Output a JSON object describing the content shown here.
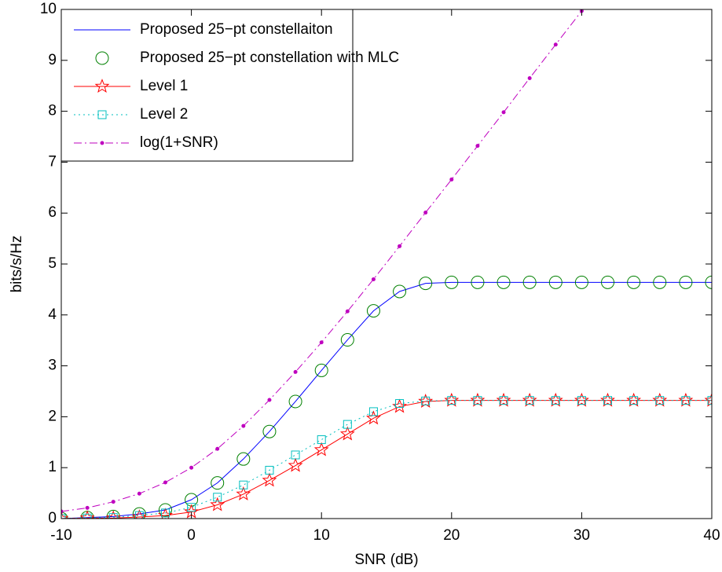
{
  "chart_data": {
    "type": "line",
    "xlabel": "SNR (dB)",
    "ylabel": "bits/s/Hz",
    "x": [
      -10,
      -8,
      -6,
      -4,
      -2,
      0,
      2,
      4,
      6,
      8,
      10,
      12,
      14,
      16,
      18,
      20,
      22,
      24,
      26,
      28,
      30,
      32,
      34,
      36,
      38,
      40
    ],
    "series": [
      {
        "name": "Proposed 25−pt constellaiton",
        "color": "#0000ff",
        "linestyle": "solid",
        "marker": "none",
        "values": [
          0.0,
          0.02,
          0.04,
          0.09,
          0.17,
          0.37,
          0.7,
          1.17,
          1.71,
          2.3,
          2.91,
          3.51,
          4.08,
          4.46,
          4.62,
          4.64,
          4.64,
          4.64,
          4.64,
          4.64,
          4.64,
          4.64,
          4.64,
          4.64,
          4.64,
          4.64
        ]
      },
      {
        "name": "Proposed 25−pt constellation with MLC",
        "color": "#008000",
        "linestyle": "none",
        "marker": "circle",
        "values": [
          0.0,
          0.02,
          0.04,
          0.09,
          0.17,
          0.37,
          0.7,
          1.17,
          1.71,
          2.3,
          2.91,
          3.51,
          4.08,
          4.46,
          4.62,
          4.64,
          4.64,
          4.64,
          4.64,
          4.64,
          4.64,
          4.64,
          4.64,
          4.64,
          4.64,
          4.64
        ]
      },
      {
        "name": "Level 1",
        "color": "#ff0000",
        "linestyle": "solid",
        "marker": "star",
        "values": [
          0.0,
          0.01,
          0.01,
          0.03,
          0.06,
          0.13,
          0.27,
          0.48,
          0.75,
          1.04,
          1.35,
          1.66,
          1.97,
          2.2,
          2.3,
          2.32,
          2.32,
          2.32,
          2.32,
          2.32,
          2.32,
          2.32,
          2.32,
          2.32,
          2.32,
          2.32
        ]
      },
      {
        "name": "Level 2",
        "color": "#00bfbf",
        "linestyle": "dotted",
        "marker": "square",
        "values": [
          0.0,
          0.01,
          0.02,
          0.06,
          0.11,
          0.22,
          0.42,
          0.66,
          0.95,
          1.25,
          1.55,
          1.85,
          2.1,
          2.26,
          2.31,
          2.32,
          2.32,
          2.32,
          2.32,
          2.32,
          2.32,
          2.32,
          2.32,
          2.32,
          2.32,
          2.32
        ]
      },
      {
        "name": "log(1+SNR)",
        "color": "#bf00bf",
        "linestyle": "dashdot",
        "marker": "dot",
        "values": [
          0.14,
          0.21,
          0.33,
          0.49,
          0.71,
          1.0,
          1.37,
          1.82,
          2.33,
          2.88,
          3.46,
          4.07,
          4.7,
          5.35,
          6.01,
          6.66,
          7.32,
          7.98,
          8.65,
          9.31,
          9.97,
          null,
          null,
          null,
          null,
          null
        ]
      }
    ],
    "xlim": [
      -10,
      40
    ],
    "xticks": [
      -10,
      0,
      10,
      20,
      30,
      40
    ],
    "ylim": [
      0,
      10
    ],
    "yticks": [
      0,
      1,
      2,
      3,
      4,
      5,
      6,
      7,
      8,
      9,
      10
    ],
    "grid": false,
    "legend": "upper left"
  }
}
